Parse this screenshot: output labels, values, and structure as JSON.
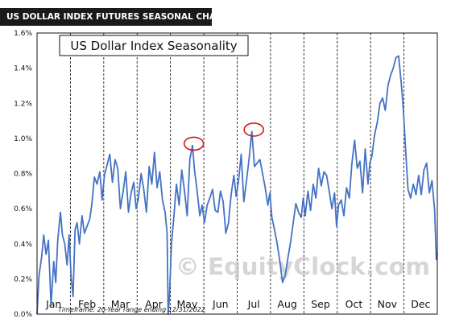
{
  "header": {
    "label": "US DOLLAR INDEX FUTURES SEASONAL CHART"
  },
  "chart_data": {
    "type": "line",
    "title": "US Dollar Index Seasonality",
    "xlabel": "",
    "ylabel": "",
    "ylim": [
      0,
      1.6
    ],
    "y_ticks": [
      "0.0%",
      "0.2%",
      "0.4%",
      "0.6%",
      "0.8%",
      "1.0%",
      "1.2%",
      "1.4%",
      "1.6%"
    ],
    "categories": [
      "Jan",
      "Feb",
      "Mar",
      "Apr",
      "May",
      "Jun",
      "Jul",
      "Aug",
      "Sep",
      "Oct",
      "Nov",
      "Dec"
    ],
    "grid": "vertical dashed lines at month boundaries",
    "footnote": "Timeframe: 20-Year range ending 12/31/2022",
    "watermark": "© EquityClock.com",
    "line_color": "#4472c4",
    "highlight_color": "#d01818",
    "highlights": [
      {
        "month": 4.7,
        "value": 0.97
      },
      {
        "month": 6.5,
        "value": 1.05
      }
    ],
    "series": [
      {
        "x": [
          0.0,
          0.06,
          0.14,
          0.2,
          0.27,
          0.34,
          0.42,
          0.5,
          0.56,
          0.62,
          0.7,
          0.76,
          0.83,
          0.9,
          0.96,
          1.02,
          1.08,
          1.14,
          1.2,
          1.27,
          1.35,
          1.42,
          1.5,
          1.58,
          1.64,
          1.72,
          1.8,
          1.88,
          1.95,
          2.02,
          2.1,
          2.18,
          2.26,
          2.34,
          2.42,
          2.5,
          2.58,
          2.66,
          2.74,
          2.82,
          2.9,
          2.97,
          3.04,
          3.12,
          3.2,
          3.28,
          3.36,
          3.44,
          3.52,
          3.6,
          3.68,
          3.76,
          3.84,
          3.9,
          3.93,
          3.97,
          4.03,
          4.1,
          4.18,
          4.26,
          4.34,
          4.42,
          4.5,
          4.58,
          4.66,
          4.72,
          4.8,
          4.88,
          4.95,
          5.02,
          5.1,
          5.18,
          5.26,
          5.34,
          5.42,
          5.5,
          5.58,
          5.66,
          5.74,
          5.82,
          5.9,
          5.97,
          6.04,
          6.12,
          6.2,
          6.28,
          6.36,
          6.44,
          6.52,
          6.6,
          6.68,
          6.76,
          6.84,
          6.92,
          6.98,
          7.04,
          7.12,
          7.2,
          7.28,
          7.36,
          7.44,
          7.52,
          7.6,
          7.68,
          7.76,
          7.84,
          7.92,
          7.98,
          8.04,
          8.12,
          8.2,
          8.28,
          8.36,
          8.44,
          8.52,
          8.6,
          8.68,
          8.76,
          8.84,
          8.92,
          8.98,
          9.04,
          9.12,
          9.2,
          9.28,
          9.36,
          9.44,
          9.52,
          9.6,
          9.68,
          9.76,
          9.84,
          9.92,
          9.98,
          10.04,
          10.12,
          10.2,
          10.28,
          10.36,
          10.44,
          10.52,
          10.6,
          10.68,
          10.76,
          10.84,
          10.92,
          10.98,
          11.04,
          11.12,
          11.2,
          11.28,
          11.36,
          11.44,
          11.52,
          11.6,
          11.68,
          11.76,
          11.84,
          11.92,
          11.97,
          12.0
        ],
        "values": [
          0.0,
          0.22,
          0.33,
          0.45,
          0.34,
          0.42,
          0.05,
          0.3,
          0.18,
          0.42,
          0.58,
          0.45,
          0.4,
          0.28,
          0.45,
          0.22,
          0.1,
          0.48,
          0.52,
          0.4,
          0.56,
          0.46,
          0.5,
          0.54,
          0.62,
          0.78,
          0.74,
          0.81,
          0.65,
          0.79,
          0.85,
          0.91,
          0.75,
          0.88,
          0.83,
          0.6,
          0.7,
          0.81,
          0.58,
          0.69,
          0.75,
          0.6,
          0.66,
          0.8,
          0.71,
          0.58,
          0.84,
          0.74,
          0.92,
          0.72,
          0.81,
          0.65,
          0.58,
          0.46,
          0.0,
          0.1,
          0.4,
          0.55,
          0.74,
          0.62,
          0.82,
          0.7,
          0.56,
          0.88,
          0.96,
          0.82,
          0.7,
          0.56,
          0.62,
          0.52,
          0.62,
          0.66,
          0.71,
          0.59,
          0.58,
          0.7,
          0.64,
          0.46,
          0.52,
          0.68,
          0.79,
          0.67,
          0.76,
          0.91,
          0.64,
          0.76,
          0.89,
          1.04,
          0.84,
          0.86,
          0.88,
          0.8,
          0.72,
          0.62,
          0.69,
          0.55,
          0.48,
          0.4,
          0.3,
          0.18,
          0.22,
          0.32,
          0.41,
          0.52,
          0.63,
          0.58,
          0.55,
          0.66,
          0.56,
          0.7,
          0.59,
          0.74,
          0.66,
          0.83,
          0.73,
          0.81,
          0.79,
          0.7,
          0.6,
          0.69,
          0.5,
          0.62,
          0.65,
          0.56,
          0.72,
          0.66,
          0.86,
          0.99,
          0.83,
          0.87,
          0.69,
          0.94,
          0.74,
          0.86,
          0.9,
          1.02,
          1.09,
          1.2,
          1.23,
          1.16,
          1.3,
          1.36,
          1.4,
          1.46,
          1.47,
          1.31,
          1.17,
          0.97,
          0.71,
          0.66,
          0.74,
          0.68,
          0.79,
          0.68,
          0.82,
          0.86,
          0.69,
          0.76,
          0.59,
          0.31,
          0.35
        ]
      }
    ]
  }
}
